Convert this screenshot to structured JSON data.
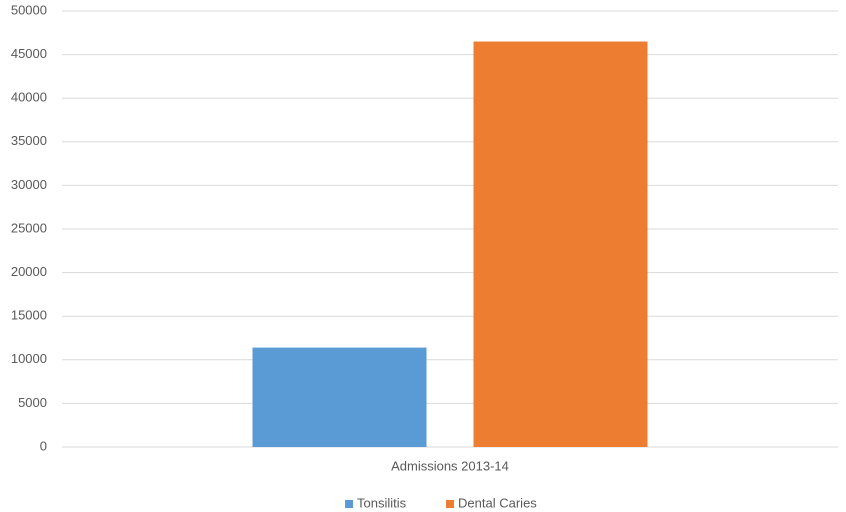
{
  "chart_data": {
    "type": "bar",
    "categories": [
      "Admissions 2013-14"
    ],
    "series": [
      {
        "name": "Tonsilitis",
        "color": "#5b9bd5",
        "values": [
          11400
        ]
      },
      {
        "name": "Dental Caries",
        "color": "#ed7d31",
        "values": [
          46500
        ]
      }
    ],
    "ylim": [
      0,
      50000
    ],
    "yticks": [
      0,
      5000,
      10000,
      15000,
      20000,
      25000,
      30000,
      35000,
      40000,
      45000,
      50000
    ],
    "grid": true,
    "legend": "bottom"
  }
}
